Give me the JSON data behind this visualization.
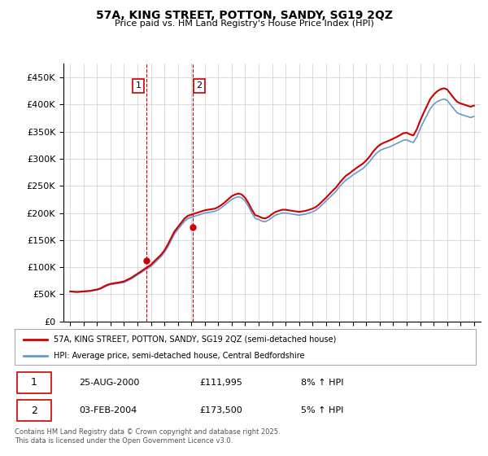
{
  "title": "57A, KING STREET, POTTON, SANDY, SG19 2QZ",
  "subtitle": "Price paid vs. HM Land Registry's House Price Index (HPI)",
  "ylabel_ticks": [
    "£0",
    "£50K",
    "£100K",
    "£150K",
    "£200K",
    "£250K",
    "£300K",
    "£350K",
    "£400K",
    "£450K"
  ],
  "ytick_values": [
    0,
    50000,
    100000,
    150000,
    200000,
    250000,
    300000,
    350000,
    400000,
    450000
  ],
  "ylim": [
    0,
    475000
  ],
  "legend_line1": "57A, KING STREET, POTTON, SANDY, SG19 2QZ (semi-detached house)",
  "legend_line2": "HPI: Average price, semi-detached house, Central Bedfordshire",
  "annotation1_date": "25-AUG-2000",
  "annotation1_price": "£111,995",
  "annotation1_hpi": "8% ↑ HPI",
  "annotation2_date": "03-FEB-2004",
  "annotation2_price": "£173,500",
  "annotation2_hpi": "5% ↑ HPI",
  "footnote": "Contains HM Land Registry data © Crown copyright and database right 2025.\nThis data is licensed under the Open Government Licence v3.0.",
  "line_color_red": "#cc0000",
  "line_color_blue": "#6699cc",
  "annotation_box_color": "#cc0000",
  "vline_color": "#cc0000",
  "fill_color": "#aaccee",
  "grid_color": "#cccccc",
  "years": [
    1995.0,
    1995.25,
    1995.5,
    1995.75,
    1996.0,
    1996.25,
    1996.5,
    1996.75,
    1997.0,
    1997.25,
    1997.5,
    1997.75,
    1998.0,
    1998.25,
    1998.5,
    1998.75,
    1999.0,
    1999.25,
    1999.5,
    1999.75,
    2000.0,
    2000.25,
    2000.5,
    2000.75,
    2001.0,
    2001.25,
    2001.5,
    2001.75,
    2002.0,
    2002.25,
    2002.5,
    2002.75,
    2003.0,
    2003.25,
    2003.5,
    2003.75,
    2004.0,
    2004.25,
    2004.5,
    2004.75,
    2005.0,
    2005.25,
    2005.5,
    2005.75,
    2006.0,
    2006.25,
    2006.5,
    2006.75,
    2007.0,
    2007.25,
    2007.5,
    2007.75,
    2008.0,
    2008.25,
    2008.5,
    2008.75,
    2009.0,
    2009.25,
    2009.5,
    2009.75,
    2010.0,
    2010.25,
    2010.5,
    2010.75,
    2011.0,
    2011.25,
    2011.5,
    2011.75,
    2012.0,
    2012.25,
    2012.5,
    2012.75,
    2013.0,
    2013.25,
    2013.5,
    2013.75,
    2014.0,
    2014.25,
    2014.5,
    2014.75,
    2015.0,
    2015.25,
    2015.5,
    2015.75,
    2016.0,
    2016.25,
    2016.5,
    2016.75,
    2017.0,
    2017.25,
    2017.5,
    2017.75,
    2018.0,
    2018.25,
    2018.5,
    2018.75,
    2019.0,
    2019.25,
    2019.5,
    2019.75,
    2020.0,
    2020.25,
    2020.5,
    2020.75,
    2021.0,
    2021.25,
    2021.5,
    2021.75,
    2022.0,
    2022.25,
    2022.5,
    2022.75,
    2023.0,
    2023.25,
    2023.5,
    2023.75,
    2024.0,
    2024.25,
    2024.5,
    2024.75,
    2025.0
  ],
  "hpi_values": [
    55000,
    54500,
    54000,
    54500,
    55000,
    55500,
    56000,
    57000,
    58000,
    60000,
    63000,
    66000,
    68000,
    69000,
    70000,
    71000,
    72000,
    75000,
    78000,
    82000,
    86000,
    90000,
    94000,
    98000,
    102000,
    108000,
    114000,
    120000,
    128000,
    138000,
    150000,
    162000,
    170000,
    178000,
    185000,
    190000,
    192000,
    194000,
    196000,
    198000,
    200000,
    201000,
    202000,
    203000,
    206000,
    210000,
    215000,
    220000,
    225000,
    228000,
    230000,
    228000,
    222000,
    212000,
    200000,
    190000,
    188000,
    185000,
    184000,
    187000,
    192000,
    196000,
    198000,
    200000,
    200000,
    199000,
    198000,
    197000,
    196000,
    197000,
    198000,
    200000,
    202000,
    205000,
    210000,
    216000,
    222000,
    228000,
    234000,
    240000,
    248000,
    255000,
    261000,
    265000,
    270000,
    274000,
    278000,
    282000,
    288000,
    295000,
    303000,
    310000,
    315000,
    318000,
    320000,
    322000,
    325000,
    328000,
    331000,
    334000,
    335000,
    332000,
    330000,
    340000,
    355000,
    368000,
    380000,
    392000,
    400000,
    405000,
    408000,
    410000,
    408000,
    400000,
    392000,
    385000,
    382000,
    380000,
    378000,
    376000,
    378000,
    380000,
    383000,
    386000,
    388000
  ],
  "red_values": [
    55500,
    55000,
    54500,
    55000,
    55500,
    56000,
    56500,
    58000,
    59000,
    61000,
    64500,
    67500,
    69500,
    70500,
    71500,
    72500,
    74000,
    77000,
    80000,
    84000,
    88000,
    92000,
    96500,
    100500,
    104500,
    111000,
    117000,
    123000,
    131000,
    141500,
    154000,
    166000,
    174000,
    182000,
    190000,
    195000,
    197000,
    199000,
    201000,
    203000,
    205000,
    206000,
    207000,
    208000,
    211000,
    215000,
    220000,
    225500,
    231000,
    234000,
    236000,
    234000,
    228000,
    218000,
    206000,
    196000,
    194000,
    191000,
    190000,
    193000,
    198000,
    202000,
    204000,
    206000,
    206000,
    205000,
    204000,
    203000,
    202000,
    203000,
    204000,
    206000,
    208000,
    211000,
    216000,
    222000,
    228000,
    234500,
    241000,
    247000,
    255000,
    262500,
    269000,
    273000,
    278000,
    282500,
    287000,
    291000,
    297000,
    304000,
    313000,
    320000,
    325500,
    329000,
    331500,
    334000,
    337000,
    340000,
    343500,
    347000,
    348000,
    345000,
    343000,
    354000,
    370000,
    384000,
    397000,
    410000,
    418000,
    424000,
    428000,
    430000,
    428000,
    420000,
    412000,
    405000,
    402000,
    400000,
    398000,
    396000,
    398000,
    400000,
    403000,
    406000,
    408000
  ],
  "sale1_x": 2000.65,
  "sale1_y": 111995,
  "sale2_x": 2004.08,
  "sale2_y": 173500,
  "vline1_x": 2000.65,
  "vline2_x": 2004.08,
  "fill_x1": 2000.65,
  "fill_x2": 2004.08,
  "xtick_years": [
    1995,
    1996,
    1997,
    1998,
    1999,
    2000,
    2001,
    2002,
    2003,
    2004,
    2005,
    2006,
    2007,
    2008,
    2009,
    2010,
    2011,
    2012,
    2013,
    2014,
    2015,
    2016,
    2017,
    2018,
    2019,
    2020,
    2021,
    2022,
    2023,
    2024,
    2025
  ]
}
